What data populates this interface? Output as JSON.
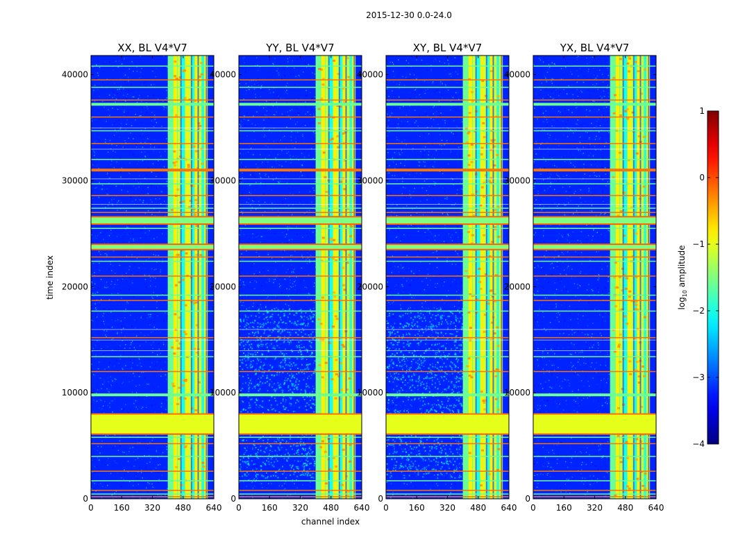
{
  "figure": {
    "suptitle": "2015-12-30 0.0-24.0"
  },
  "chart_data": {
    "type": "heatmap",
    "xlabel": "channel index",
    "ylabel": "time index",
    "xlim": [
      0,
      640
    ],
    "ylim": [
      0,
      41800
    ],
    "xticks": [
      0,
      160,
      320,
      480,
      640
    ],
    "yticks": [
      0,
      10000,
      20000,
      30000,
      40000
    ],
    "panels": [
      {
        "title": "XX, BL V4*V7",
        "polarization": "XX"
      },
      {
        "title": "YY, BL V4*V7",
        "polarization": "YY"
      },
      {
        "title": "XY, BL V4*V7",
        "polarization": "XY"
      },
      {
        "title": "YX, BL V4*V7",
        "polarization": "YX"
      }
    ],
    "colorbar": {
      "label": "log10 amplitude",
      "label_base": "log",
      "label_sub": "10",
      "label_rest": " amplitude",
      "range": [
        -4,
        1
      ],
      "ticks": [
        1,
        0,
        -1,
        -2,
        -3,
        -4
      ],
      "tick_labels": [
        "1",
        "0",
        "−1",
        "−2",
        "−3",
        "−4"
      ],
      "colormap": "jet"
    },
    "features": {
      "bright_channel_band": [
        400,
        600
      ],
      "flagged_time_blocks": [
        {
          "range": [
            6100,
            8000
          ],
          "level": -1.0
        },
        {
          "range": [
            25900,
            26600
          ],
          "level": -1.5
        },
        {
          "range": [
            23500,
            24000
          ],
          "level": -1.5
        }
      ],
      "rfi_rows": [
        200,
        450,
        800,
        1700,
        2600,
        4000,
        5200,
        5800,
        8000,
        9800,
        12000,
        13400,
        15200,
        17700,
        18700,
        19200,
        21000,
        22400,
        22800,
        25500,
        27000,
        27400,
        28600,
        29700,
        31000,
        32000,
        33500,
        34700,
        36000,
        37200,
        37600,
        38800,
        39500,
        40800
      ]
    }
  }
}
